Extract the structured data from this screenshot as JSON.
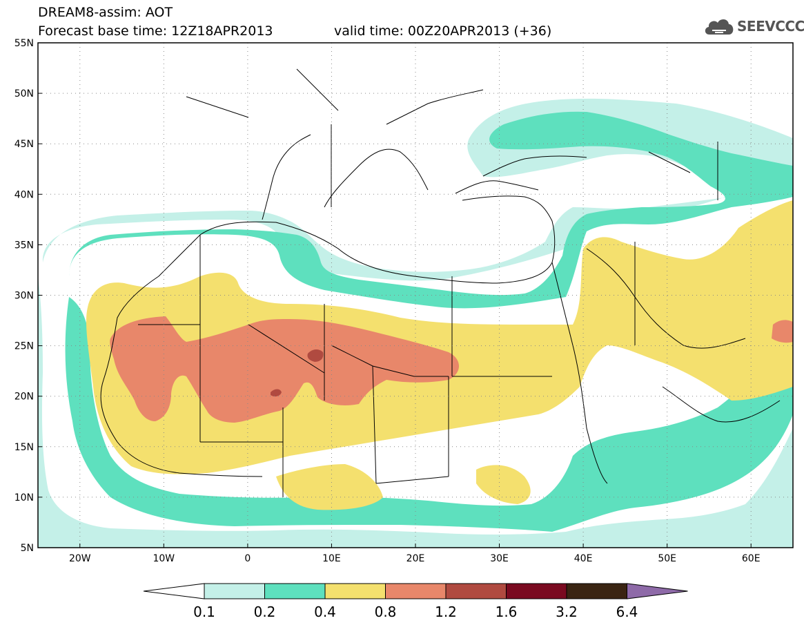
{
  "header": {
    "title": "DREAM8-assim: AOT",
    "base_time": "Forecast base time: 12Z18APR2013",
    "valid_time": "valid time: 00Z20APR2013 (+36)",
    "logo_text": "SEEVCCC",
    "logo_icon": "cloud-icon"
  },
  "map": {
    "lat_labels": [
      "55N",
      "50N",
      "45N",
      "40N",
      "35N",
      "30N",
      "25N",
      "20N",
      "15N",
      "10N",
      "5N"
    ],
    "lon_labels": [
      "20W",
      "10W",
      "0",
      "10E",
      "20E",
      "30E",
      "40E",
      "50E",
      "60E"
    ],
    "grid": true
  },
  "colorbar": {
    "labels": [
      "0.1",
      "0.2",
      "0.4",
      "0.8",
      "1.2",
      "1.6",
      "3.2",
      "6.4"
    ],
    "colors": [
      "#c4f0e8",
      "#5ee0be",
      "#f4e06e",
      "#e8876a",
      "#b04a40",
      "#7a0a20",
      "#3a2412",
      "#8e6aa8"
    ],
    "under_color": "#ffffff"
  }
}
